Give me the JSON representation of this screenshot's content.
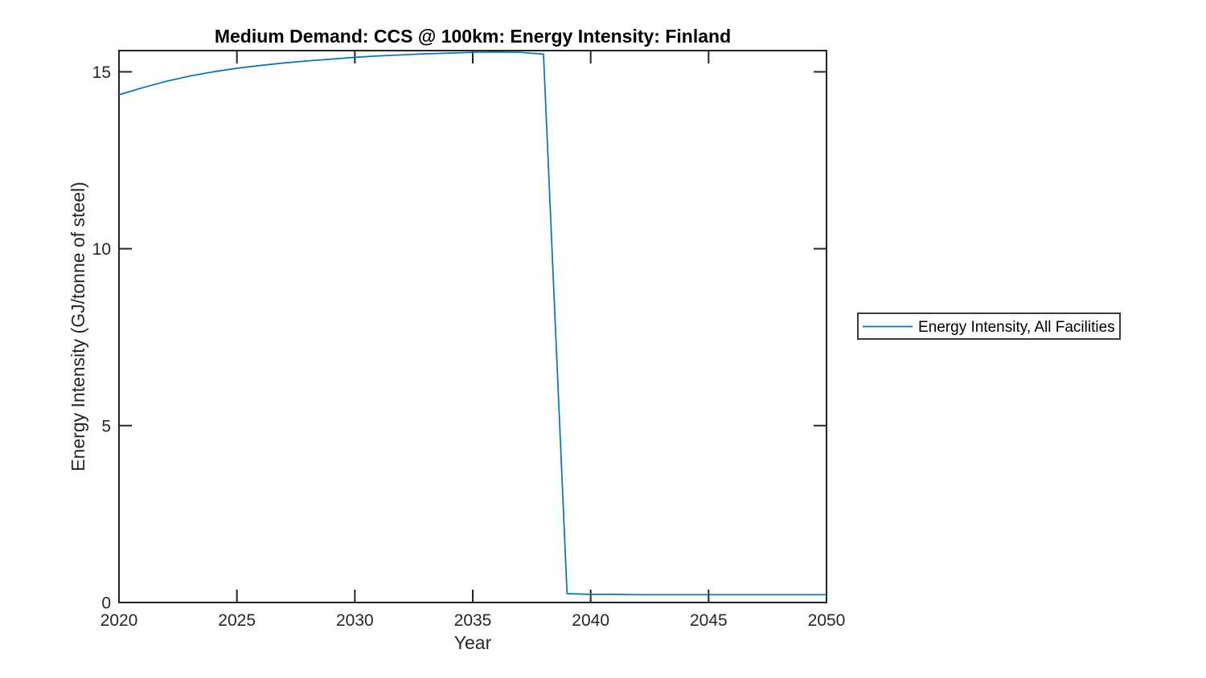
{
  "figure": {
    "background": "#ffffff"
  },
  "chart_data": {
    "type": "line",
    "title": "Medium Demand: CCS @ 100km: Energy Intensity: Finland",
    "xlabel": "Year",
    "ylabel": "Energy Intensity (GJ/tonne of steel)",
    "xlim": [
      2020,
      2050
    ],
    "ylim": [
      0,
      15.6
    ],
    "xticks": [
      2020,
      2025,
      2030,
      2035,
      2040,
      2045,
      2050
    ],
    "yticks": [
      0,
      5,
      10,
      15
    ],
    "grid": false,
    "box": true,
    "tick_direction": "in",
    "axis_color": "#262626",
    "title_color": "#000000",
    "legend": {
      "position": "right-outside",
      "border_color": "#262626",
      "entries": [
        {
          "label": "Energy Intensity, All Facilities",
          "color": "#0072BD"
        }
      ]
    },
    "series": [
      {
        "name": "Energy Intensity, All Facilities",
        "color": "#0072BD",
        "x": [
          2020,
          2021,
          2022,
          2023,
          2024,
          2025,
          2026,
          2027,
          2028,
          2029,
          2030,
          2031,
          2032,
          2033,
          2034,
          2035,
          2036,
          2037,
          2038,
          2039,
          2040,
          2041,
          2042,
          2043,
          2044,
          2045,
          2046,
          2047,
          2048,
          2049,
          2050
        ],
        "y": [
          14.35,
          14.55,
          14.73,
          14.88,
          15.0,
          15.1,
          15.18,
          15.25,
          15.31,
          15.36,
          15.41,
          15.45,
          15.48,
          15.51,
          15.53,
          15.55,
          15.56,
          15.55,
          15.5,
          0.25,
          0.23,
          0.23,
          0.22,
          0.22,
          0.22,
          0.22,
          0.22,
          0.22,
          0.22,
          0.22,
          0.22
        ]
      }
    ]
  }
}
